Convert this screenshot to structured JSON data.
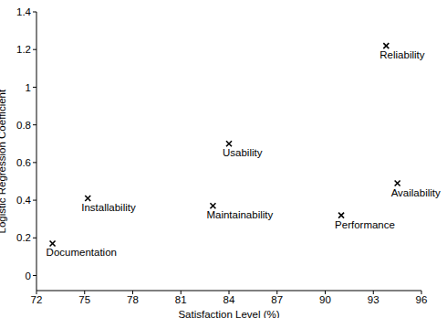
{
  "chart_data": {
    "type": "scatter",
    "x_label": "Satisfaction Level (%)",
    "y_label": "Logistic Regression Coefficient",
    "x": [
      73,
      75.2,
      83,
      84,
      91,
      93.8,
      94.5
    ],
    "values": [
      0.17,
      0.41,
      0.37,
      0.7,
      0.32,
      1.22,
      0.49
    ],
    "point_labels": [
      "Documentation",
      "Installability",
      "Maintainability",
      "Usability",
      "Performance",
      "Reliability",
      "Availability"
    ],
    "color": "#000000",
    "marker": "x",
    "xlim": [
      72,
      96
    ],
    "xticks": [
      72,
      75,
      78,
      81,
      84,
      87,
      90,
      93,
      96
    ],
    "ylim": [
      -0.08,
      1.4
    ],
    "yticks": [
      0,
      0.2,
      0.4,
      0.6,
      0.8,
      1,
      1.2,
      1.4
    ],
    "grid": false
  }
}
